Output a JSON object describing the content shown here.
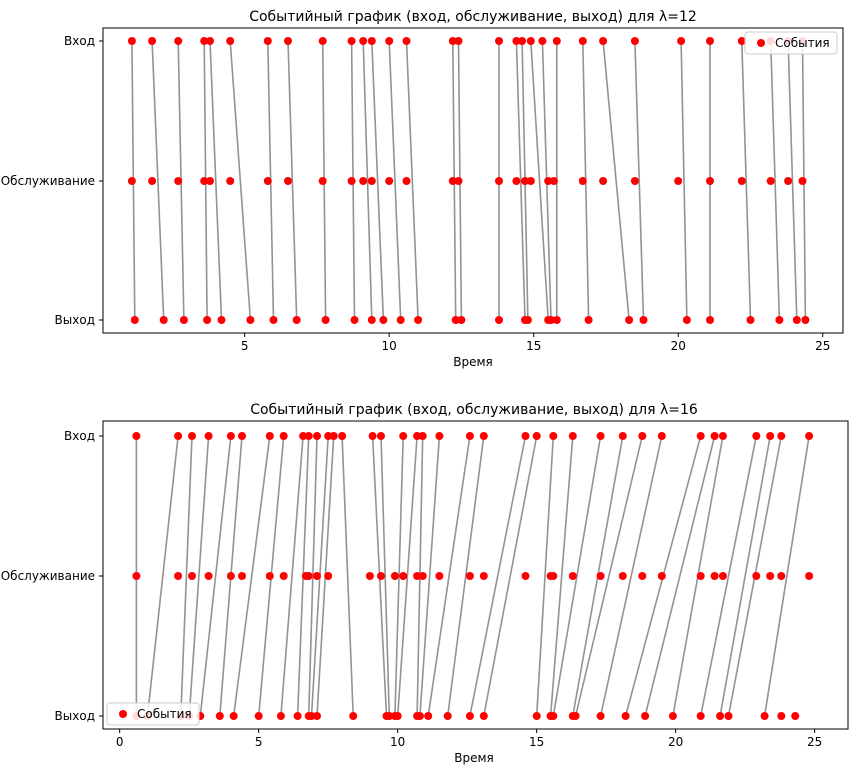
{
  "chart_data": [
    {
      "type": "scatter",
      "title": "Событийный график (вход, обслуживание, выход) для λ=12",
      "xlabel": "Время",
      "ylabel": "",
      "xlim": [
        0.1,
        25.7
      ],
      "xticks": [
        5,
        10,
        15,
        20,
        25
      ],
      "y_categories": [
        "Выход",
        "Обслуживание",
        "Вход"
      ],
      "legend": {
        "label": "События",
        "loc": "upper right"
      },
      "series": [
        {
          "name": "События",
          "color": "#ff0000",
          "line_color": "#808080",
          "entry": [
            1.1,
            1.8,
            2.7,
            3.6,
            3.8,
            4.5,
            5.8,
            6.5,
            7.7,
            8.7,
            9.1,
            9.4,
            10.0,
            10.6,
            12.2,
            12.4,
            13.8,
            14.4,
            14.6,
            14.9,
            15.3,
            15.8,
            16.7,
            17.4,
            18.5,
            20.1,
            21.1,
            22.2,
            23.2,
            23.8,
            24.3
          ],
          "service": [
            1.1,
            1.8,
            2.7,
            3.6,
            3.8,
            4.5,
            5.8,
            6.5,
            7.7,
            8.7,
            9.1,
            9.4,
            10.0,
            10.6,
            12.2,
            12.4,
            13.8,
            14.4,
            14.7,
            14.9,
            15.5,
            15.7,
            16.7,
            17.4,
            18.5,
            20.0,
            21.1,
            22.2,
            23.2,
            23.8,
            24.3
          ],
          "exit": [
            1.2,
            2.2,
            2.9,
            3.7,
            4.2,
            5.2,
            6.0,
            6.8,
            7.8,
            8.8,
            9.4,
            9.8,
            10.4,
            11.0,
            12.3,
            12.5,
            13.8,
            14.7,
            14.8,
            15.5,
            15.6,
            15.8,
            16.9,
            18.3,
            18.8,
            20.3,
            21.1,
            22.5,
            23.5,
            24.1,
            24.4
          ]
        }
      ]
    },
    {
      "type": "scatter",
      "title": "Событийный график (вход, обслуживание, выход) для λ=16",
      "xlabel": "Время",
      "ylabel": "",
      "xlim": [
        -0.6,
        26.2
      ],
      "xticks": [
        0,
        5,
        10,
        15,
        20,
        25
      ],
      "y_categories": [
        "Выход",
        "Обслуживание",
        "Вход"
      ],
      "legend": {
        "label": "События",
        "loc": "lower left"
      },
      "series": [
        {
          "name": "События",
          "color": "#ff0000",
          "line_color": "#808080",
          "entry": [
            0.6,
            2.1,
            2.6,
            3.2,
            4.0,
            4.4,
            5.4,
            5.9,
            6.6,
            6.8,
            7.1,
            7.5,
            7.7,
            8.0,
            9.1,
            9.4,
            10.2,
            10.7,
            10.9,
            11.5,
            12.6,
            13.1,
            14.6,
            15.0,
            15.6,
            16.3,
            17.3,
            18.1,
            18.8,
            19.5,
            20.9,
            21.4,
            21.7,
            22.9,
            23.4,
            23.8,
            24.8
          ],
          "service": [
            0.6,
            2.1,
            2.6,
            3.2,
            4.0,
            4.4,
            5.4,
            5.9,
            6.7,
            6.8,
            7.1,
            7.5,
            9.0,
            9.4,
            9.9,
            10.2,
            10.7,
            10.9,
            11.5,
            12.6,
            13.1,
            14.6,
            15.5,
            15.6,
            16.3,
            17.3,
            18.1,
            18.8,
            19.5,
            20.9,
            21.4,
            21.7,
            22.9,
            23.4,
            23.8,
            24.8
          ],
          "exit": [
            0.6,
            1.0,
            2.2,
            2.5,
            2.9,
            3.6,
            4.1,
            5.0,
            5.8,
            6.4,
            6.8,
            6.9,
            7.1,
            8.4,
            9.6,
            9.7,
            9.9,
            10.0,
            10.7,
            10.8,
            11.1,
            11.8,
            12.6,
            13.1,
            15.0,
            15.5,
            15.6,
            16.3,
            16.4,
            17.3,
            18.2,
            18.9,
            19.9,
            20.9,
            21.6,
            21.9,
            23.2,
            23.8,
            24.3
          ]
        }
      ]
    }
  ]
}
